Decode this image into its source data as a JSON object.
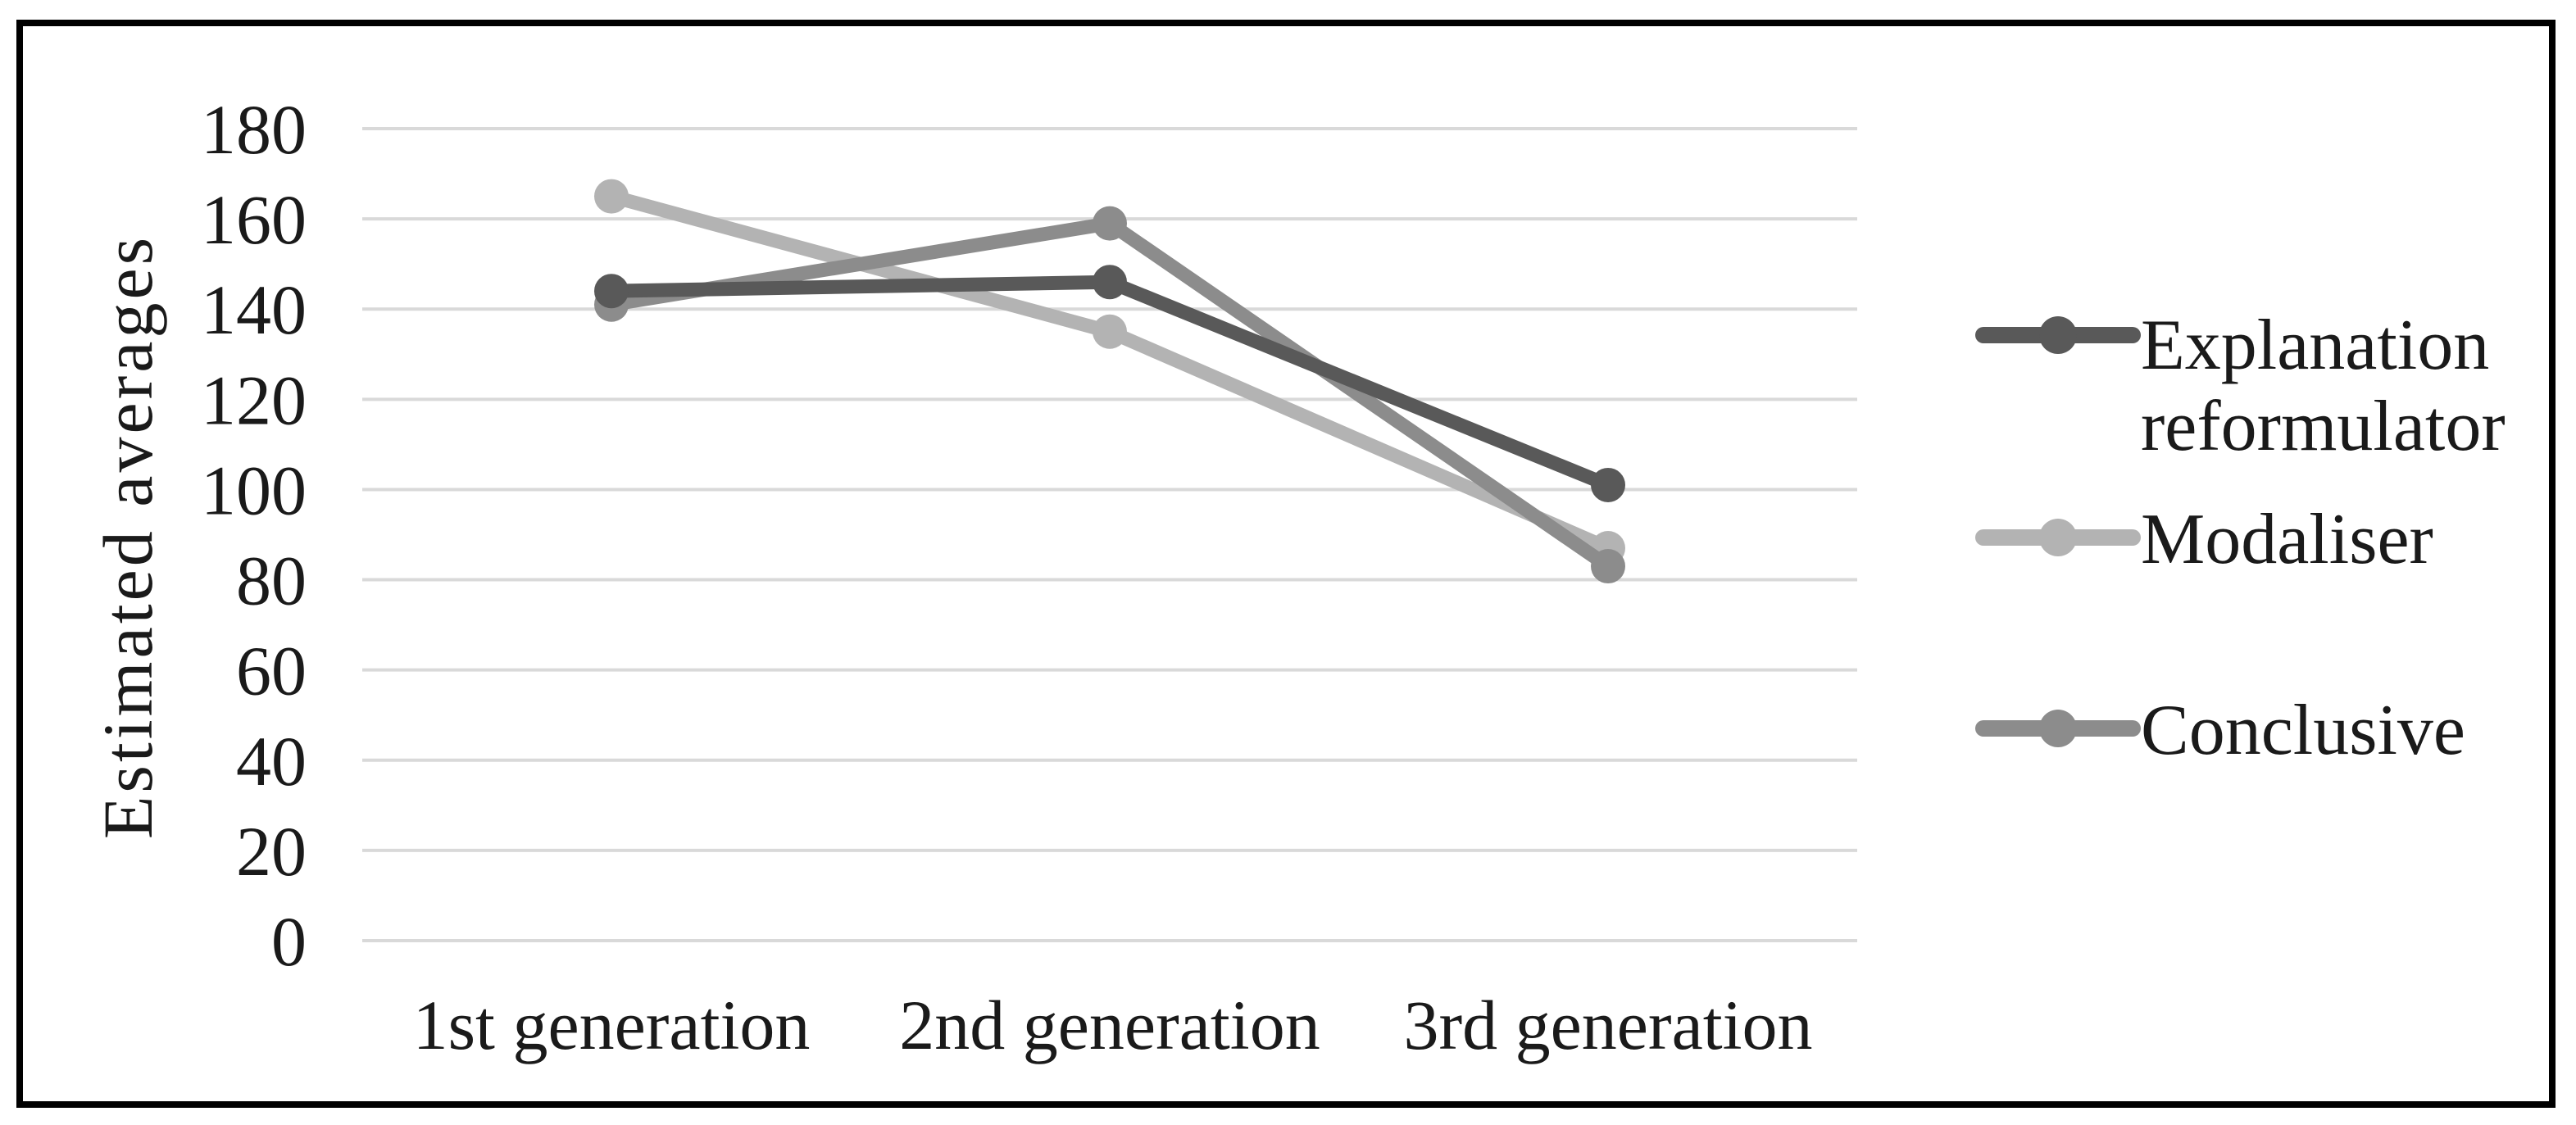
{
  "figure": {
    "background": "#ffffff",
    "border_color": "#000000",
    "text_color": "#1a1a1a"
  },
  "chart_data": {
    "type": "line",
    "title": "",
    "xlabel": "",
    "ylabel": "Estimated averages",
    "categories": [
      "1st generation",
      "2nd generation",
      "3rd generation"
    ],
    "series": [
      {
        "name": "Explanation reformulator",
        "name_lines": [
          "Explanation",
          "reformulator"
        ],
        "values": [
          144,
          146,
          101
        ],
        "color": "#595959"
      },
      {
        "name": "Modaliser",
        "name_lines": [
          "Modaliser"
        ],
        "values": [
          165,
          135,
          87
        ],
        "color": "#b3b3b3"
      },
      {
        "name": "Conclusive",
        "name_lines": [
          "Conclusive"
        ],
        "values": [
          141,
          159,
          83
        ],
        "color": "#8c8c8c"
      }
    ],
    "ylim": [
      0,
      180
    ],
    "yticks": [
      0,
      20,
      40,
      60,
      80,
      100,
      120,
      140,
      160,
      180
    ],
    "grid": "horizontal",
    "gridline_color": "#d9d9d9",
    "marker": "circle",
    "legend_position": "right"
  }
}
